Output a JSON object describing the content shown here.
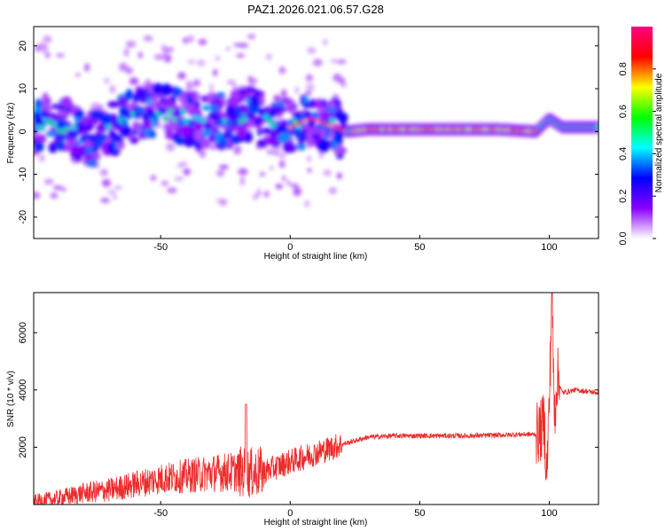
{
  "title": "PAZ1.2026.021.06.57.G28",
  "colors": {
    "snr_line": "#ee2a2a",
    "frame": "#000000"
  },
  "chart_data": [
    {
      "type": "heatmap",
      "title": "PAZ1.2026.021.06.57.G28",
      "xlabel": "Height of straight line (km)",
      "ylabel": "Frequency (Hz)",
      "xlim": [
        -99,
        119
      ],
      "ylim": [
        -25,
        24.5
      ],
      "x_ticks": [
        -50,
        0,
        50,
        100
      ],
      "x_tick_labels": [
        "-50",
        "0",
        "50",
        "100"
      ],
      "y_ticks": [
        -20,
        -10,
        0,
        10,
        20
      ],
      "y_tick_labels": [
        "-20",
        "-10",
        "0",
        "10",
        "20"
      ],
      "colorbar": {
        "label": "Normalized spectral amplitude",
        "range": [
          0,
          1
        ],
        "ticks": [
          0.0,
          0.2,
          0.4,
          0.6,
          0.8
        ],
        "tick_labels": [
          "0.0",
          "0.2",
          "0.4",
          "0.6",
          "0.8"
        ],
        "colormap": [
          "#ffffff",
          "#8800ff",
          "#0000ff",
          "#00ffff",
          "#00ff00",
          "#ffff00",
          "#ff0000",
          "#ff0080"
        ]
      },
      "ridge_frequency": [
        {
          "x": -95,
          "y": 2
        },
        {
          "x": -85,
          "y": 1
        },
        {
          "x": -75,
          "y": -2
        },
        {
          "x": -65,
          "y": 2
        },
        {
          "x": -55,
          "y": 5
        },
        {
          "x": -45,
          "y": 4
        },
        {
          "x": -35,
          "y": 2
        },
        {
          "x": -25,
          "y": 3
        },
        {
          "x": -15,
          "y": 4
        },
        {
          "x": -5,
          "y": 2
        },
        {
          "x": 0,
          "y": 1
        },
        {
          "x": 8,
          "y": 3
        },
        {
          "x": 15,
          "y": 1.5
        },
        {
          "x": 22,
          "y": 0
        },
        {
          "x": 30,
          "y": 0.5
        },
        {
          "x": 50,
          "y": 0.5
        },
        {
          "x": 80,
          "y": 0.5
        },
        {
          "x": 95,
          "y": 0
        },
        {
          "x": 100,
          "y": 3
        },
        {
          "x": 105,
          "y": 1
        },
        {
          "x": 119,
          "y": 1
        }
      ]
    },
    {
      "type": "line",
      "xlabel": "Height of straight line (km)",
      "ylabel": "SNR (10 * v/v)",
      "xlim": [
        -99,
        119
      ],
      "ylim": [
        0,
        7400
      ],
      "x_ticks": [
        -50,
        0,
        50,
        100
      ],
      "x_tick_labels": [
        "-50",
        "0",
        "50",
        "100"
      ],
      "y_ticks": [
        2000,
        4000,
        6000
      ],
      "y_tick_labels": [
        "2000",
        "4000",
        "6000"
      ],
      "series": [
        {
          "name": "SNR",
          "trend": [
            {
              "x": -99,
              "y": 100
            },
            {
              "x": -90,
              "y": 200
            },
            {
              "x": -80,
              "y": 400
            },
            {
              "x": -70,
              "y": 500
            },
            {
              "x": -60,
              "y": 700
            },
            {
              "x": -50,
              "y": 900
            },
            {
              "x": -40,
              "y": 1000
            },
            {
              "x": -30,
              "y": 1100
            },
            {
              "x": -20,
              "y": 1150
            },
            {
              "x": -15,
              "y": 1100
            },
            {
              "x": -10,
              "y": 1150
            },
            {
              "x": 0,
              "y": 1500
            },
            {
              "x": 10,
              "y": 1800
            },
            {
              "x": 20,
              "y": 2100
            },
            {
              "x": 30,
              "y": 2350
            },
            {
              "x": 40,
              "y": 2400
            },
            {
              "x": 50,
              "y": 2400
            },
            {
              "x": 60,
              "y": 2400
            },
            {
              "x": 70,
              "y": 2400
            },
            {
              "x": 80,
              "y": 2420
            },
            {
              "x": 90,
              "y": 2450
            },
            {
              "x": 95,
              "y": 2450
            },
            {
              "x": 97,
              "y": 2600
            },
            {
              "x": 98,
              "y": 3000
            },
            {
              "x": 99,
              "y": 1000
            },
            {
              "x": 100,
              "y": 3500
            },
            {
              "x": 101,
              "y": 7400
            },
            {
              "x": 102,
              "y": 3000
            },
            {
              "x": 103,
              "y": 4500
            },
            {
              "x": 105,
              "y": 3900
            },
            {
              "x": 110,
              "y": 4000
            },
            {
              "x": 119,
              "y": 3900
            }
          ]
        }
      ]
    }
  ]
}
